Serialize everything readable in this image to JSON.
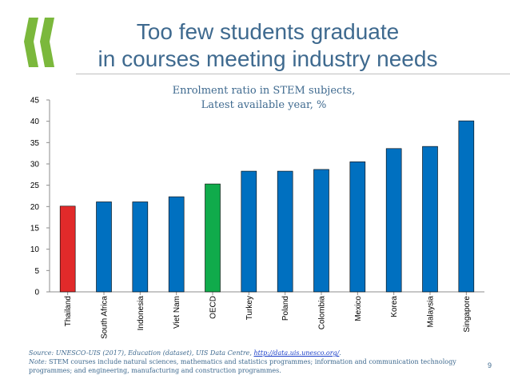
{
  "slide": {
    "title_line1": "Too few students graduate",
    "title_line2": "in courses meeting industry needs",
    "page_number": "9"
  },
  "footer": {
    "source_prefix": "Source: UNESCO-UIS (2017), Education (dataset), UIS Data Centre, ",
    "source_link": "http://data.uis.unesco.org/",
    "source_suffix": ".",
    "note_label": "Note:",
    "note_text": " STEM courses include natural sciences, mathematics and statistics programmes; information and communication technology programmes; and engineering, manufacturing and construction programmes."
  },
  "colors": {
    "title": "#3f6a8f",
    "logo": "#7bb83c",
    "bar_default": "#0070c0",
    "bar_thailand": "#e12a2a",
    "bar_oecd": "#10ab4b"
  },
  "chart_data": {
    "type": "bar",
    "title": "Enrolment ratio in STEM subjects,",
    "subtitle": "Latest available year, %",
    "categories": [
      "Thailand",
      "South Africa",
      "Indonesia",
      "Viet Nam",
      "OECD",
      "Turkey",
      "Poland",
      "Colombia",
      "Mexico",
      "Korea",
      "Malaysia",
      "Singapore"
    ],
    "values": [
      20.1,
      21.1,
      21.1,
      22.3,
      25.3,
      28.3,
      28.3,
      28.7,
      30.5,
      33.6,
      34.1,
      40.1
    ],
    "bar_colors": [
      "#e12a2a",
      "#0070c0",
      "#0070c0",
      "#0070c0",
      "#10ab4b",
      "#0070c0",
      "#0070c0",
      "#0070c0",
      "#0070c0",
      "#0070c0",
      "#0070c0",
      "#0070c0"
    ],
    "ylim": [
      0,
      45
    ],
    "yticks": [
      "0",
      "5",
      "10",
      "15",
      "20",
      "25",
      "30",
      "35",
      "40",
      "45"
    ],
    "xlabel": "",
    "ylabel": "",
    "grid": false,
    "legend": "none"
  }
}
